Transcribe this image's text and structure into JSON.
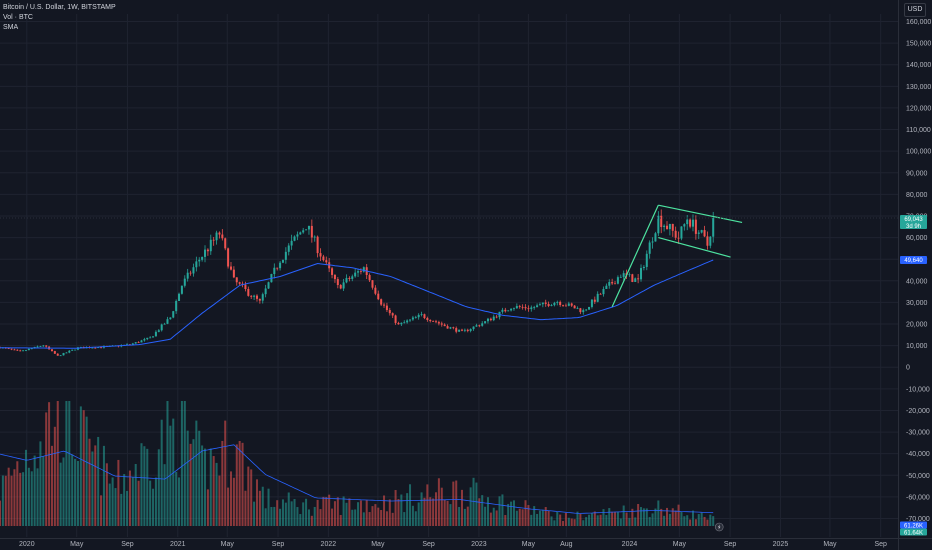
{
  "header": {
    "symbol_line": "Bitcoin / U.S. Dollar, 1W, BITSTAMP",
    "vol_line": "Vol · BTC",
    "sma_line": "SMA",
    "currency": "USD"
  },
  "chart_data": {
    "type": "candlestick",
    "title": "Bitcoin / U.S. Dollar, 1W, BITSTAMP",
    "xlabel": "",
    "ylabel": "",
    "ylim": [
      -72000,
      168000
    ],
    "y_ticks": [
      160000,
      150000,
      140000,
      130000,
      120000,
      110000,
      100000,
      90000,
      80000,
      70000,
      60000,
      50000,
      40000,
      30000,
      20000,
      10000,
      0,
      -10000,
      -20000,
      -30000,
      -40000,
      -50000,
      -60000,
      -70000
    ],
    "y_tick_labels": [
      "160,000",
      "150,000",
      "140,000",
      "130,000",
      "120,000",
      "110,000",
      "100,000",
      "90,000",
      "80,000",
      "70,000",
      "60,000",
      "50,000",
      "40,000",
      "30,000",
      "20,000",
      "10,000",
      "0",
      "-10,000",
      "-20,000",
      "-30,000",
      "-40,000",
      "-50,000",
      "-60,000",
      "-70,000"
    ],
    "x_range": [
      "2019-10-28",
      "2025-10-13"
    ],
    "x_ticks": [
      {
        "date": "2020-01-01",
        "label": "2020"
      },
      {
        "date": "2020-05-01",
        "label": "May"
      },
      {
        "date": "2020-09-01",
        "label": "Sep"
      },
      {
        "date": "2021-01-01",
        "label": "2021"
      },
      {
        "date": "2021-05-01",
        "label": "May"
      },
      {
        "date": "2021-09-01",
        "label": "Sep"
      },
      {
        "date": "2022-01-01",
        "label": "2022"
      },
      {
        "date": "2022-05-01",
        "label": "May"
      },
      {
        "date": "2022-09-01",
        "label": "Sep"
      },
      {
        "date": "2023-01-01",
        "label": "2023"
      },
      {
        "date": "2023-05-01",
        "label": "May"
      },
      {
        "date": "2023-08-01",
        "label": "Aug"
      },
      {
        "date": "2024-01-01",
        "label": "2024"
      },
      {
        "date": "2024-05-01",
        "label": "May"
      },
      {
        "date": "2024-09-01",
        "label": "Sep"
      },
      {
        "date": "2025-01-01",
        "label": "2025"
      },
      {
        "date": "2025-05-01",
        "label": "May"
      },
      {
        "date": "2025-09-01",
        "label": "Sep"
      }
    ],
    "price_path": [
      [
        "2019-10-28",
        9200
      ],
      [
        "2019-12-16",
        7200
      ],
      [
        "2020-02-10",
        10200
      ],
      [
        "2020-03-16",
        5200
      ],
      [
        "2020-05-04",
        9000
      ],
      [
        "2020-07-20",
        9500
      ],
      [
        "2020-09-07",
        10500
      ],
      [
        "2020-10-26",
        13500
      ],
      [
        "2020-12-14",
        23000
      ],
      [
        "2021-01-11",
        38000
      ],
      [
        "2021-02-22",
        50000
      ],
      [
        "2021-04-12",
        62000
      ],
      [
        "2021-05-17",
        40000
      ],
      [
        "2021-07-19",
        30000
      ],
      [
        "2021-09-06",
        50000
      ],
      [
        "2021-11-08",
        66000
      ],
      [
        "2021-12-27",
        47000
      ],
      [
        "2022-01-24",
        37000
      ],
      [
        "2022-03-28",
        46000
      ],
      [
        "2022-05-09",
        30000
      ],
      [
        "2022-06-20",
        19500
      ],
      [
        "2022-08-15",
        24000
      ],
      [
        "2022-10-10",
        19200
      ],
      [
        "2022-11-21",
        16200
      ],
      [
        "2023-01-16",
        21000
      ],
      [
        "2023-03-20",
        28000
      ],
      [
        "2023-05-08",
        27500
      ],
      [
        "2023-07-10",
        30500
      ],
      [
        "2023-09-11",
        26000
      ],
      [
        "2023-10-23",
        34000
      ],
      [
        "2023-12-11",
        43000
      ],
      [
        "2024-01-22",
        40000
      ],
      [
        "2024-03-11",
        69000
      ],
      [
        "2024-04-29",
        60000
      ],
      [
        "2024-05-20",
        69000
      ],
      [
        "2024-06-24",
        61000
      ],
      [
        "2024-07-08",
        56500
      ],
      [
        "2024-07-22",
        69043
      ]
    ],
    "volume_path": [
      [
        "2019-10-28",
        25000
      ],
      [
        "2020-03-16",
        80000
      ],
      [
        "2020-08-01",
        28000
      ],
      [
        "2021-01-11",
        70000
      ],
      [
        "2021-03-01",
        40000
      ],
      [
        "2021-05-17",
        55000
      ],
      [
        "2021-08-01",
        18000
      ],
      [
        "2021-11-08",
        14000
      ],
      [
        "2022-05-09",
        16000
      ],
      [
        "2022-11-14",
        25000
      ],
      [
        "2023-03-13",
        15000
      ],
      [
        "2023-08-01",
        6000
      ],
      [
        "2024-03-11",
        13000
      ],
      [
        "2024-07-22",
        5000
      ]
    ],
    "volume_sma_path": [
      [
        "2019-10-28",
        46000
      ],
      [
        "2020-01-01",
        42000
      ],
      [
        "2020-04-01",
        48000
      ],
      [
        "2020-08-01",
        32000
      ],
      [
        "2020-12-01",
        30000
      ],
      [
        "2021-03-01",
        48000
      ],
      [
        "2021-05-17",
        52000
      ],
      [
        "2021-08-01",
        33000
      ],
      [
        "2021-12-01",
        18000
      ],
      [
        "2022-06-01",
        16000
      ],
      [
        "2022-11-14",
        17000
      ],
      [
        "2023-05-01",
        11000
      ],
      [
        "2023-09-01",
        8000
      ],
      [
        "2024-03-01",
        10000
      ],
      [
        "2024-07-22",
        8500
      ]
    ],
    "price_sma_path": [
      [
        "2019-10-28",
        9000
      ],
      [
        "2020-05-01",
        8800
      ],
      [
        "2020-10-01",
        10500
      ],
      [
        "2020-12-14",
        13000
      ],
      [
        "2021-03-01",
        25000
      ],
      [
        "2021-06-01",
        38000
      ],
      [
        "2021-09-06",
        42000
      ],
      [
        "2021-12-06",
        48000
      ],
      [
        "2022-03-01",
        46000
      ],
      [
        "2022-06-01",
        42000
      ],
      [
        "2022-09-01",
        35000
      ],
      [
        "2022-12-01",
        28000
      ],
      [
        "2023-03-01",
        24000
      ],
      [
        "2023-06-01",
        22000
      ],
      [
        "2023-09-01",
        23000
      ],
      [
        "2023-12-01",
        28500
      ],
      [
        "2024-03-01",
        38000
      ],
      [
        "2024-05-13",
        44000
      ],
      [
        "2024-07-22",
        49640
      ]
    ],
    "trendlines": [
      {
        "from": [
          "2023-11-20",
          28000
        ],
        "to": [
          "2024-03-11",
          75000
        ]
      },
      {
        "from": [
          "2024-03-11",
          75000
        ],
        "to": [
          "2024-09-30",
          67000
        ]
      },
      {
        "from": [
          "2024-03-11",
          60000
        ],
        "to": [
          "2024-09-02",
          51000
        ]
      }
    ],
    "last_price": {
      "value": 69043,
      "label": "69,043",
      "countdown": "3d 9h"
    },
    "sma_value": {
      "value": 49640,
      "label": "49,640"
    },
    "volume_tags": [
      "61.26K",
      "61.64K"
    ],
    "colors": {
      "up": "#26a69a",
      "down": "#ef5350",
      "sma": "#2962ff",
      "trendline": "#4de3a0",
      "background": "#131722",
      "grid": "#1f2330",
      "text": "#b2b5be"
    }
  }
}
